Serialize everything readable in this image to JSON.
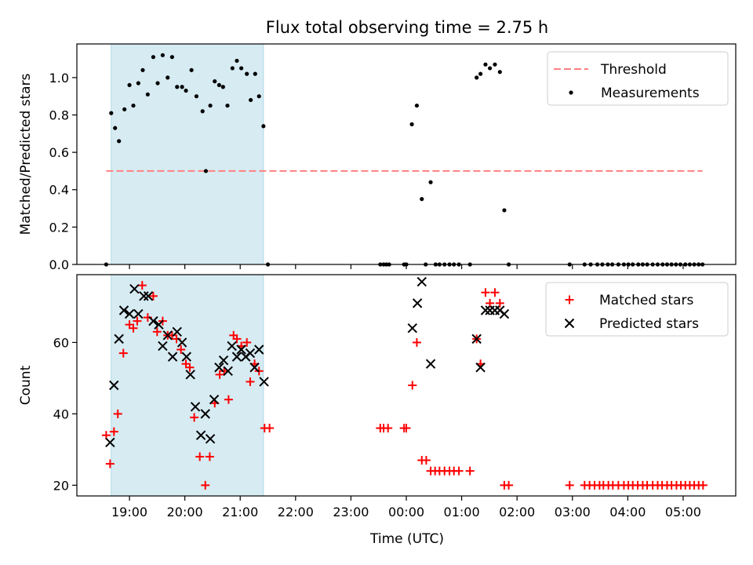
{
  "chart_data": {
    "title": "Flux total observing time = 2.75 h",
    "xlabel": "Time (UTC)",
    "x_unit": "hours since 00:00 UTC (negative = previous day)",
    "xlim": [
      -5.95,
      5.95
    ],
    "xticks": [
      {
        "v": -5,
        "label": "19:00"
      },
      {
        "v": -4,
        "label": "20:00"
      },
      {
        "v": -3,
        "label": "21:00"
      },
      {
        "v": -2,
        "label": "22:00"
      },
      {
        "v": -1,
        "label": "23:00"
      },
      {
        "v": 0,
        "label": "00:00"
      },
      {
        "v": 1,
        "label": "01:00"
      },
      {
        "v": 2,
        "label": "02:00"
      },
      {
        "v": 3,
        "label": "03:00"
      },
      {
        "v": 4,
        "label": "04:00"
      },
      {
        "v": 5,
        "label": "05:00"
      }
    ],
    "shaded_interval": [
      -5.33,
      -2.58
    ],
    "shade_color": "#add8e6",
    "top": {
      "type": "scatter",
      "ylabel": "Matched/Predicted stars",
      "ylim": [
        0,
        1.18
      ],
      "yticks": [
        0.0,
        0.2,
        0.4,
        0.6,
        0.8,
        1.0
      ],
      "threshold": 0.5,
      "threshold_color": "#ff8080",
      "legend": {
        "position": "top-right",
        "items": [
          "Threshold",
          "Measurements"
        ]
      },
      "points": [
        [
          -5.42,
          0
        ],
        [
          -5.33,
          0.81
        ],
        [
          -5.26,
          0.73
        ],
        [
          -5.19,
          0.66
        ],
        [
          -5.09,
          0.83
        ],
        [
          -5.0,
          0.96
        ],
        [
          -4.93,
          0.85
        ],
        [
          -4.84,
          0.97
        ],
        [
          -4.76,
          1.04
        ],
        [
          -4.67,
          0.91
        ],
        [
          -4.57,
          1.11
        ],
        [
          -4.49,
          0.97
        ],
        [
          -4.4,
          1.12
        ],
        [
          -4.31,
          1.0
        ],
        [
          -4.23,
          1.11
        ],
        [
          -4.14,
          0.95
        ],
        [
          -4.05,
          0.95
        ],
        [
          -3.98,
          0.93
        ],
        [
          -3.88,
          1.04
        ],
        [
          -3.79,
          0.9
        ],
        [
          -3.68,
          0.82
        ],
        [
          -3.62,
          0.5
        ],
        [
          -3.54,
          0.85
        ],
        [
          -3.46,
          0.98
        ],
        [
          -3.38,
          0.96
        ],
        [
          -3.31,
          0.95
        ],
        [
          -3.23,
          0.85
        ],
        [
          -3.14,
          1.05
        ],
        [
          -3.06,
          1.09
        ],
        [
          -2.98,
          1.05
        ],
        [
          -2.88,
          1.02
        ],
        [
          -2.81,
          0.88
        ],
        [
          -2.73,
          1.02
        ],
        [
          -2.66,
          0.9
        ],
        [
          -2.58,
          0.74
        ],
        [
          -2.5,
          0
        ],
        [
          -0.47,
          0
        ],
        [
          -0.41,
          0
        ],
        [
          -0.36,
          0
        ],
        [
          -0.31,
          0
        ],
        [
          -0.04,
          0
        ],
        [
          0.0,
          0
        ],
        [
          0.1,
          0.75
        ],
        [
          0.19,
          0.85
        ],
        [
          0.28,
          0.35
        ],
        [
          0.35,
          0
        ],
        [
          0.44,
          0.44
        ],
        [
          0.53,
          0
        ],
        [
          0.6,
          0
        ],
        [
          0.69,
          0
        ],
        [
          0.78,
          0
        ],
        [
          0.86,
          0
        ],
        [
          0.95,
          0
        ],
        [
          1.15,
          0
        ],
        [
          1.27,
          1.0
        ],
        [
          1.34,
          1.02
        ],
        [
          1.43,
          1.07
        ],
        [
          1.51,
          1.05
        ],
        [
          1.6,
          1.07
        ],
        [
          1.69,
          1.03
        ],
        [
          1.77,
          0.29
        ],
        [
          1.85,
          0
        ],
        [
          2.95,
          0
        ],
        [
          3.22,
          0
        ],
        [
          3.33,
          0
        ],
        [
          3.45,
          0
        ],
        [
          3.54,
          0
        ],
        [
          3.64,
          0
        ],
        [
          3.72,
          0
        ],
        [
          3.83,
          0
        ],
        [
          3.93,
          0
        ],
        [
          4.01,
          0
        ],
        [
          4.09,
          0
        ],
        [
          4.19,
          0
        ],
        [
          4.27,
          0
        ],
        [
          4.35,
          0
        ],
        [
          4.45,
          0
        ],
        [
          4.54,
          0
        ],
        [
          4.63,
          0
        ],
        [
          4.71,
          0
        ],
        [
          4.79,
          0
        ],
        [
          4.87,
          0
        ],
        [
          4.95,
          0
        ],
        [
          5.04,
          0
        ],
        [
          5.12,
          0
        ],
        [
          5.2,
          0
        ],
        [
          5.28,
          0
        ],
        [
          5.35,
          0
        ]
      ]
    },
    "bottom": {
      "type": "scatter",
      "ylabel": "Count",
      "ylim": [
        17,
        79
      ],
      "yticks": [
        20,
        40,
        60
      ],
      "matched_color": "#ff0000",
      "predicted_color": "#000000",
      "legend": {
        "position": "top-right",
        "items": [
          "Matched stars",
          "Predicted stars"
        ]
      },
      "matched": [
        [
          -5.42,
          34
        ],
        [
          -5.35,
          26
        ],
        [
          -5.28,
          35
        ],
        [
          -5.21,
          40
        ],
        [
          -5.11,
          57
        ],
        [
          -5.0,
          65
        ],
        [
          -4.93,
          64
        ],
        [
          -4.86,
          66
        ],
        [
          -4.77,
          76
        ],
        [
          -4.67,
          67
        ],
        [
          -4.57,
          73
        ],
        [
          -4.5,
          63
        ],
        [
          -4.4,
          66
        ],
        [
          -4.31,
          62
        ],
        [
          -4.23,
          62
        ],
        [
          -4.15,
          61
        ],
        [
          -4.07,
          58
        ],
        [
          -3.98,
          54
        ],
        [
          -3.91,
          53
        ],
        [
          -3.83,
          39
        ],
        [
          -3.73,
          28
        ],
        [
          -3.63,
          20
        ],
        [
          -3.55,
          28
        ],
        [
          -3.46,
          43
        ],
        [
          -3.37,
          51
        ],
        [
          -3.29,
          52
        ],
        [
          -3.21,
          44
        ],
        [
          -3.12,
          62
        ],
        [
          -3.06,
          61
        ],
        [
          -2.98,
          59
        ],
        [
          -2.88,
          60
        ],
        [
          -2.82,
          49
        ],
        [
          -2.74,
          54
        ],
        [
          -2.66,
          52
        ],
        [
          -2.56,
          36
        ],
        [
          -2.47,
          36
        ],
        [
          -0.47,
          36
        ],
        [
          -0.41,
          36
        ],
        [
          -0.33,
          36
        ],
        [
          -0.04,
          36
        ],
        [
          0.0,
          36
        ],
        [
          0.11,
          48
        ],
        [
          0.19,
          60
        ],
        [
          0.28,
          27
        ],
        [
          0.36,
          27
        ],
        [
          0.44,
          24
        ],
        [
          0.52,
          24
        ],
        [
          0.6,
          24
        ],
        [
          0.69,
          24
        ],
        [
          0.78,
          24
        ],
        [
          0.86,
          24
        ],
        [
          0.95,
          24
        ],
        [
          1.15,
          24
        ],
        [
          1.27,
          61
        ],
        [
          1.34,
          54
        ],
        [
          1.43,
          74
        ],
        [
          1.51,
          71
        ],
        [
          1.6,
          74
        ],
        [
          1.69,
          71
        ],
        [
          1.77,
          20
        ],
        [
          1.85,
          20
        ],
        [
          2.95,
          20
        ],
        [
          3.22,
          20
        ],
        [
          3.31,
          20
        ],
        [
          3.4,
          20
        ],
        [
          3.49,
          20
        ],
        [
          3.56,
          20
        ],
        [
          3.65,
          20
        ],
        [
          3.73,
          20
        ],
        [
          3.83,
          20
        ],
        [
          3.93,
          20
        ],
        [
          4.01,
          20
        ],
        [
          4.09,
          20
        ],
        [
          4.18,
          20
        ],
        [
          4.27,
          20
        ],
        [
          4.35,
          20
        ],
        [
          4.45,
          20
        ],
        [
          4.54,
          20
        ],
        [
          4.62,
          20
        ],
        [
          4.71,
          20
        ],
        [
          4.79,
          20
        ],
        [
          4.88,
          20
        ],
        [
          4.96,
          20
        ],
        [
          5.04,
          20
        ],
        [
          5.12,
          20
        ],
        [
          5.2,
          20
        ],
        [
          5.28,
          20
        ],
        [
          5.36,
          20
        ]
      ],
      "predicted": [
        [
          -5.35,
          32
        ],
        [
          -5.28,
          48
        ],
        [
          -5.19,
          61
        ],
        [
          -5.1,
          69
        ],
        [
          -5.0,
          68
        ],
        [
          -4.91,
          75
        ],
        [
          -4.84,
          68
        ],
        [
          -4.74,
          73
        ],
        [
          -4.66,
          73
        ],
        [
          -4.57,
          66
        ],
        [
          -4.47,
          65
        ],
        [
          -4.4,
          59
        ],
        [
          -4.31,
          62
        ],
        [
          -4.22,
          56
        ],
        [
          -4.14,
          63
        ],
        [
          -4.05,
          60
        ],
        [
          -3.97,
          56
        ],
        [
          -3.9,
          51
        ],
        [
          -3.81,
          42
        ],
        [
          -3.71,
          34
        ],
        [
          -3.63,
          40
        ],
        [
          -3.54,
          33
        ],
        [
          -3.47,
          44
        ],
        [
          -3.38,
          53
        ],
        [
          -3.3,
          55
        ],
        [
          -3.22,
          52
        ],
        [
          -3.15,
          59
        ],
        [
          -3.06,
          56
        ],
        [
          -2.98,
          58
        ],
        [
          -2.9,
          56
        ],
        [
          -2.82,
          57
        ],
        [
          -2.74,
          53
        ],
        [
          -2.66,
          58
        ],
        [
          -2.57,
          49
        ],
        [
          0.11,
          64
        ],
        [
          0.2,
          71
        ],
        [
          0.28,
          77
        ],
        [
          0.44,
          54
        ],
        [
          1.27,
          61
        ],
        [
          1.34,
          53
        ],
        [
          1.43,
          69
        ],
        [
          1.51,
          69
        ],
        [
          1.6,
          69
        ],
        [
          1.69,
          69
        ],
        [
          1.77,
          68
        ]
      ]
    }
  }
}
